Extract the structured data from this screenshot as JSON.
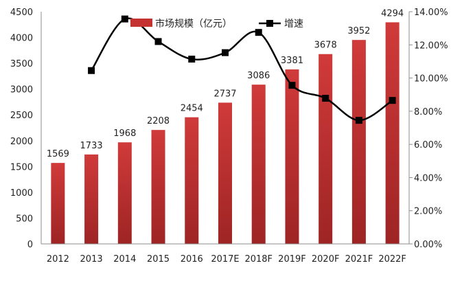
{
  "chart_data": {
    "type": "bar+line",
    "title": "",
    "categories": [
      "2012",
      "2013",
      "2014",
      "2015",
      "2016",
      "2017E",
      "2018F",
      "2019F",
      "2020F",
      "2021F",
      "2022F"
    ],
    "series": [
      {
        "name": "市场规模（亿元）",
        "type": "bar",
        "axis": "left",
        "color": "#c53232",
        "values": [
          1569,
          1733,
          1968,
          2208,
          2454,
          2737,
          3086,
          3381,
          3678,
          3952,
          4294
        ],
        "data_labels": [
          "1569",
          "1733",
          "1968",
          "2208",
          "2454",
          "2737",
          "3086",
          "3381",
          "3678",
          "3952",
          "4294"
        ]
      },
      {
        "name": "增速",
        "type": "line",
        "axis": "right",
        "color": "#000000",
        "marker": "square",
        "smooth": true,
        "values": [
          null,
          10.45,
          13.56,
          12.2,
          11.14,
          11.53,
          12.75,
          9.56,
          8.78,
          7.45,
          8.65
        ]
      }
    ],
    "left_axis": {
      "min": 0,
      "max": 4500,
      "step": 500,
      "ticks": [
        "0",
        "500",
        "1000",
        "1500",
        "2000",
        "2500",
        "3000",
        "3500",
        "4000",
        "4500"
      ]
    },
    "right_axis": {
      "min": 0,
      "max": 14,
      "step": 2,
      "unit": "%",
      "ticks": [
        "0.00%",
        "2.00%",
        "4.00%",
        "6.00%",
        "8.00%",
        "10.00%",
        "12.00%",
        "14.00%"
      ]
    },
    "xlabel": "",
    "ylabel": "",
    "y2label": "",
    "grid": false,
    "legend": {
      "position": "top-inside",
      "items": [
        {
          "label": "市场规模（亿元）",
          "symbol": "bar",
          "color": "#c53232"
        },
        {
          "label": "增速",
          "symbol": "line-square",
          "color": "#000000"
        }
      ]
    }
  }
}
